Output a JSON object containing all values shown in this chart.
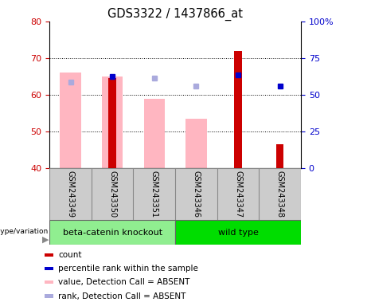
{
  "title": "GDS3322 / 1437866_at",
  "samples": [
    "GSM243349",
    "GSM243350",
    "GSM243351",
    "GSM243346",
    "GSM243347",
    "GSM243348"
  ],
  "ylim_left": [
    40,
    80
  ],
  "ylim_right": [
    0,
    100
  ],
  "yticks_left": [
    40,
    50,
    60,
    70,
    80
  ],
  "yticks_right": [
    0,
    25,
    50,
    75,
    100
  ],
  "red_bar_values": [
    null,
    64.5,
    null,
    null,
    72.0,
    46.5
  ],
  "pink_bar_values": [
    66.0,
    65.0,
    59.0,
    53.5,
    null,
    null
  ],
  "blue_dot_values": [
    null,
    65.0,
    null,
    null,
    65.5,
    62.5
  ],
  "light_blue_dot_values": [
    63.5,
    null,
    64.5,
    62.5,
    null,
    null
  ],
  "group1_label": "beta-catenin knockout",
  "group2_label": "wild type",
  "group1_color": "#90EE90",
  "group2_color": "#00DD00",
  "red_color": "#CC0000",
  "pink_color": "#FFB6C1",
  "blue_color": "#0000CC",
  "light_blue_color": "#AAAADD",
  "tick_color_left": "#CC0000",
  "tick_color_right": "#0000CC",
  "legend_items": [
    {
      "label": "count",
      "color": "#CC0000"
    },
    {
      "label": "percentile rank within the sample",
      "color": "#0000CC"
    },
    {
      "label": "value, Detection Call = ABSENT",
      "color": "#FFB6C1"
    },
    {
      "label": "rank, Detection Call = ABSENT",
      "color": "#AAAADD"
    }
  ],
  "genotype_label": "genotype/variation",
  "baseline": 40
}
